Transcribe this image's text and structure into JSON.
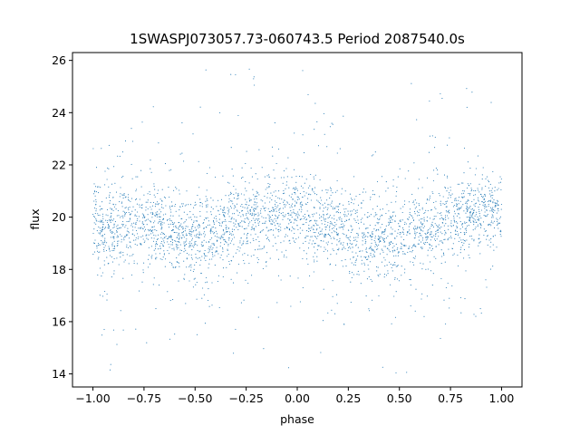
{
  "chart_data": {
    "type": "scatter",
    "title": "1SWASPJ073057.73-060743.5 Period 2087540.0s",
    "xlabel": "phase",
    "ylabel": "flux",
    "xlim": [
      -1.1,
      1.1
    ],
    "ylim": [
      13.5,
      26.3
    ],
    "xticks": [
      -1.0,
      -0.75,
      -0.5,
      -0.25,
      0.0,
      0.25,
      0.5,
      0.75,
      1.0
    ],
    "xtick_labels": [
      "−1.00",
      "−0.75",
      "−0.50",
      "−0.25",
      "0.00",
      "0.25",
      "0.50",
      "0.75",
      "1.00"
    ],
    "yticks": [
      14,
      16,
      18,
      20,
      22,
      24,
      26
    ],
    "ytick_labels": [
      "14",
      "16",
      "18",
      "20",
      "22",
      "24",
      "26"
    ],
    "grid": false,
    "point_color": "#1f77b4",
    "profile": {
      "phase": [
        -1.0,
        -0.9,
        -0.8,
        -0.7,
        -0.6,
        -0.5,
        -0.4,
        -0.3,
        -0.2,
        -0.1,
        0.0,
        0.1,
        0.2,
        0.3,
        0.4,
        0.5,
        0.6,
        0.7,
        0.8,
        0.9,
        1.0
      ],
      "median_flux": [
        19.7,
        19.6,
        19.9,
        19.6,
        19.3,
        19.2,
        19.5,
        19.8,
        20.0,
        20.2,
        20.3,
        19.7,
        19.6,
        19.3,
        19.1,
        19.2,
        19.4,
        19.8,
        20.0,
        20.2,
        20.3
      ]
    },
    "flux_range_observed": [
      14.0,
      25.7
    ]
  }
}
